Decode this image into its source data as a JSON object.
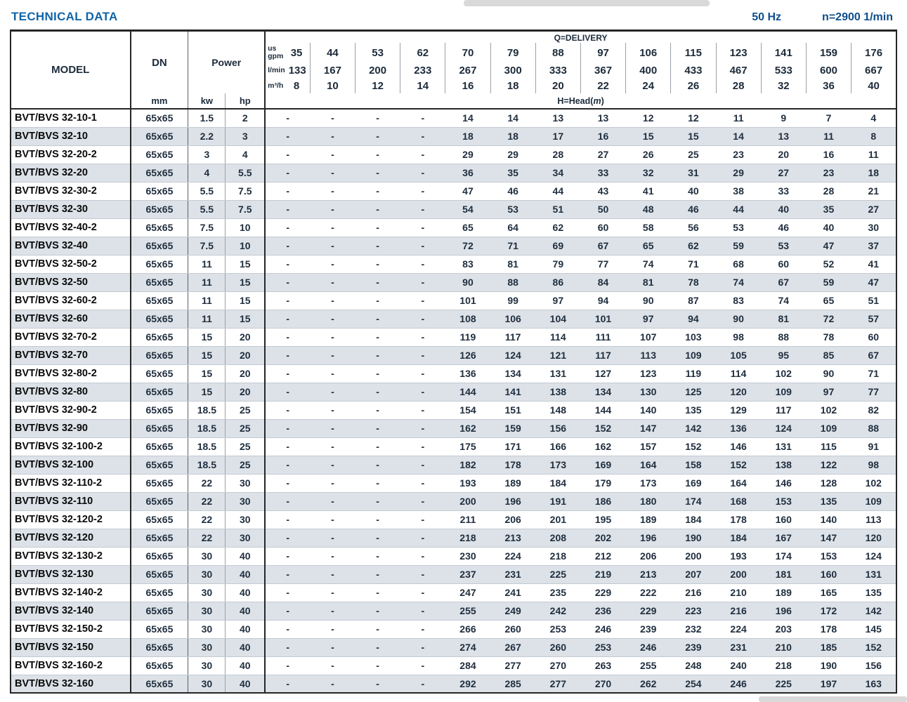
{
  "page": {
    "title": "TECHNICAL DATA",
    "frequency": "50 Hz",
    "speed": "n=2900 1/min"
  },
  "colors": {
    "title_blue": "#1065A8",
    "header_navy": "#0F4F8C",
    "row_shade": "#DCE2E8",
    "border_dark": "#262626"
  },
  "table": {
    "headers": {
      "model": "MODEL",
      "dn": "DN",
      "dn_unit": "mm",
      "power": "Power",
      "power_units": [
        "kw",
        "hp"
      ],
      "delivery_title": "Q=DELIVERY",
      "head_prefix": "H=Head(",
      "head_m": "m",
      "head_suffix": ")",
      "unit_rows": [
        {
          "label": "us\ngpm",
          "values": [
            "35",
            "44",
            "53",
            "62",
            "70",
            "79",
            "88",
            "97",
            "106",
            "115",
            "123",
            "141",
            "159",
            "176"
          ]
        },
        {
          "label": "l/min",
          "values": [
            "133",
            "167",
            "200",
            "233",
            "267",
            "300",
            "333",
            "367",
            "400",
            "433",
            "467",
            "533",
            "600",
            "667"
          ]
        },
        {
          "label": "m³/h",
          "values": [
            "8",
            "10",
            "12",
            "14",
            "16",
            "18",
            "20",
            "22",
            "24",
            "26",
            "28",
            "32",
            "36",
            "40"
          ]
        }
      ]
    },
    "rows": [
      {
        "model": "BVT/BVS 32-10-1",
        "dn": "65x65",
        "kw": "1.5",
        "hp": "2",
        "head": [
          "-",
          "-",
          "-",
          "-",
          "14",
          "14",
          "13",
          "13",
          "12",
          "12",
          "11",
          "9",
          "7",
          "4"
        ]
      },
      {
        "model": "BVT/BVS 32-10",
        "dn": "65x65",
        "kw": "2.2",
        "hp": "3",
        "head": [
          "-",
          "-",
          "-",
          "-",
          "18",
          "18",
          "17",
          "16",
          "15",
          "15",
          "14",
          "13",
          "11",
          "8"
        ]
      },
      {
        "model": "BVT/BVS 32-20-2",
        "dn": "65x65",
        "kw": "3",
        "hp": "4",
        "head": [
          "-",
          "-",
          "-",
          "-",
          "29",
          "29",
          "28",
          "27",
          "26",
          "25",
          "23",
          "20",
          "16",
          "11"
        ]
      },
      {
        "model": "BVT/BVS 32-20",
        "dn": "65x65",
        "kw": "4",
        "hp": "5.5",
        "head": [
          "-",
          "-",
          "-",
          "-",
          "36",
          "35",
          "34",
          "33",
          "32",
          "31",
          "29",
          "27",
          "23",
          "18"
        ]
      },
      {
        "model": "BVT/BVS 32-30-2",
        "dn": "65x65",
        "kw": "5.5",
        "hp": "7.5",
        "head": [
          "-",
          "-",
          "-",
          "-",
          "47",
          "46",
          "44",
          "43",
          "41",
          "40",
          "38",
          "33",
          "28",
          "21"
        ]
      },
      {
        "model": "BVT/BVS 32-30",
        "dn": "65x65",
        "kw": "5.5",
        "hp": "7.5",
        "head": [
          "-",
          "-",
          "-",
          "-",
          "54",
          "53",
          "51",
          "50",
          "48",
          "46",
          "44",
          "40",
          "35",
          "27"
        ]
      },
      {
        "model": "BVT/BVS 32-40-2",
        "dn": "65x65",
        "kw": "7.5",
        "hp": "10",
        "head": [
          "-",
          "-",
          "-",
          "-",
          "65",
          "64",
          "62",
          "60",
          "58",
          "56",
          "53",
          "46",
          "40",
          "30"
        ]
      },
      {
        "model": "BVT/BVS 32-40",
        "dn": "65x65",
        "kw": "7.5",
        "hp": "10",
        "head": [
          "-",
          "-",
          "-",
          "-",
          "72",
          "71",
          "69",
          "67",
          "65",
          "62",
          "59",
          "53",
          "47",
          "37"
        ]
      },
      {
        "model": "BVT/BVS 32-50-2",
        "dn": "65x65",
        "kw": "11",
        "hp": "15",
        "head": [
          "-",
          "-",
          "-",
          "-",
          "83",
          "81",
          "79",
          "77",
          "74",
          "71",
          "68",
          "60",
          "52",
          "41"
        ]
      },
      {
        "model": "BVT/BVS 32-50",
        "dn": "65x65",
        "kw": "11",
        "hp": "15",
        "head": [
          "-",
          "-",
          "-",
          "-",
          "90",
          "88",
          "86",
          "84",
          "81",
          "78",
          "74",
          "67",
          "59",
          "47"
        ]
      },
      {
        "model": "BVT/BVS 32-60-2",
        "dn": "65x65",
        "kw": "11",
        "hp": "15",
        "head": [
          "-",
          "-",
          "-",
          "-",
          "101",
          "99",
          "97",
          "94",
          "90",
          "87",
          "83",
          "74",
          "65",
          "51"
        ]
      },
      {
        "model": "BVT/BVS 32-60",
        "dn": "65x65",
        "kw": "11",
        "hp": "15",
        "head": [
          "-",
          "-",
          "-",
          "-",
          "108",
          "106",
          "104",
          "101",
          "97",
          "94",
          "90",
          "81",
          "72",
          "57"
        ]
      },
      {
        "model": "BVT/BVS 32-70-2",
        "dn": "65x65",
        "kw": "15",
        "hp": "20",
        "head": [
          "-",
          "-",
          "-",
          "-",
          "119",
          "117",
          "114",
          "111",
          "107",
          "103",
          "98",
          "88",
          "78",
          "60"
        ]
      },
      {
        "model": "BVT/BVS 32-70",
        "dn": "65x65",
        "kw": "15",
        "hp": "20",
        "head": [
          "-",
          "-",
          "-",
          "-",
          "126",
          "124",
          "121",
          "117",
          "113",
          "109",
          "105",
          "95",
          "85",
          "67"
        ]
      },
      {
        "model": "BVT/BVS 32-80-2",
        "dn": "65x65",
        "kw": "15",
        "hp": "20",
        "head": [
          "-",
          "-",
          "-",
          "-",
          "136",
          "134",
          "131",
          "127",
          "123",
          "119",
          "114",
          "102",
          "90",
          "71"
        ]
      },
      {
        "model": "BVT/BVS 32-80",
        "dn": "65x65",
        "kw": "15",
        "hp": "20",
        "head": [
          "-",
          "-",
          "-",
          "-",
          "144",
          "141",
          "138",
          "134",
          "130",
          "125",
          "120",
          "109",
          "97",
          "77"
        ]
      },
      {
        "model": "BVT/BVS 32-90-2",
        "dn": "65x65",
        "kw": "18.5",
        "hp": "25",
        "head": [
          "-",
          "-",
          "-",
          "-",
          "154",
          "151",
          "148",
          "144",
          "140",
          "135",
          "129",
          "117",
          "102",
          "82"
        ]
      },
      {
        "model": "BVT/BVS 32-90",
        "dn": "65x65",
        "kw": "18.5",
        "hp": "25",
        "head": [
          "-",
          "-",
          "-",
          "-",
          "162",
          "159",
          "156",
          "152",
          "147",
          "142",
          "136",
          "124",
          "109",
          "88"
        ]
      },
      {
        "model": "BVT/BVS 32-100-2",
        "dn": "65x65",
        "kw": "18.5",
        "hp": "25",
        "head": [
          "-",
          "-",
          "-",
          "-",
          "175",
          "171",
          "166",
          "162",
          "157",
          "152",
          "146",
          "131",
          "115",
          "91"
        ]
      },
      {
        "model": "BVT/BVS 32-100",
        "dn": "65x65",
        "kw": "18.5",
        "hp": "25",
        "head": [
          "-",
          "-",
          "-",
          "-",
          "182",
          "178",
          "173",
          "169",
          "164",
          "158",
          "152",
          "138",
          "122",
          "98"
        ]
      },
      {
        "model": "BVT/BVS 32-110-2",
        "dn": "65x65",
        "kw": "22",
        "hp": "30",
        "head": [
          "-",
          "-",
          "-",
          "-",
          "193",
          "189",
          "184",
          "179",
          "173",
          "169",
          "164",
          "146",
          "128",
          "102"
        ]
      },
      {
        "model": "BVT/BVS 32-110",
        "dn": "65x65",
        "kw": "22",
        "hp": "30",
        "head": [
          "-",
          "-",
          "-",
          "-",
          "200",
          "196",
          "191",
          "186",
          "180",
          "174",
          "168",
          "153",
          "135",
          "109"
        ]
      },
      {
        "model": "BVT/BVS 32-120-2",
        "dn": "65x65",
        "kw": "22",
        "hp": "30",
        "head": [
          "-",
          "-",
          "-",
          "-",
          "211",
          "206",
          "201",
          "195",
          "189",
          "184",
          "178",
          "160",
          "140",
          "113"
        ]
      },
      {
        "model": "BVT/BVS 32-120",
        "dn": "65x65",
        "kw": "22",
        "hp": "30",
        "head": [
          "-",
          "-",
          "-",
          "-",
          "218",
          "213",
          "208",
          "202",
          "196",
          "190",
          "184",
          "167",
          "147",
          "120"
        ]
      },
      {
        "model": "BVT/BVS 32-130-2",
        "dn": "65x65",
        "kw": "30",
        "hp": "40",
        "head": [
          "-",
          "-",
          "-",
          "-",
          "230",
          "224",
          "218",
          "212",
          "206",
          "200",
          "193",
          "174",
          "153",
          "124"
        ]
      },
      {
        "model": "BVT/BVS 32-130",
        "dn": "65x65",
        "kw": "30",
        "hp": "40",
        "head": [
          "-",
          "-",
          "-",
          "-",
          "237",
          "231",
          "225",
          "219",
          "213",
          "207",
          "200",
          "181",
          "160",
          "131"
        ]
      },
      {
        "model": "BVT/BVS 32-140-2",
        "dn": "65x65",
        "kw": "30",
        "hp": "40",
        "head": [
          "-",
          "-",
          "-",
          "-",
          "247",
          "241",
          "235",
          "229",
          "222",
          "216",
          "210",
          "189",
          "165",
          "135"
        ]
      },
      {
        "model": "BVT/BVS 32-140",
        "dn": "65x65",
        "kw": "30",
        "hp": "40",
        "head": [
          "-",
          "-",
          "-",
          "-",
          "255",
          "249",
          "242",
          "236",
          "229",
          "223",
          "216",
          "196",
          "172",
          "142"
        ]
      },
      {
        "model": "BVT/BVS 32-150-2",
        "dn": "65x65",
        "kw": "30",
        "hp": "40",
        "head": [
          "-",
          "-",
          "-",
          "-",
          "266",
          "260",
          "253",
          "246",
          "239",
          "232",
          "224",
          "203",
          "178",
          "145"
        ]
      },
      {
        "model": "BVT/BVS 32-150",
        "dn": "65x65",
        "kw": "30",
        "hp": "40",
        "head": [
          "-",
          "-",
          "-",
          "-",
          "274",
          "267",
          "260",
          "253",
          "246",
          "239",
          "231",
          "210",
          "185",
          "152"
        ]
      },
      {
        "model": "BVT/BVS 32-160-2",
        "dn": "65x65",
        "kw": "30",
        "hp": "40",
        "head": [
          "-",
          "-",
          "-",
          "-",
          "284",
          "277",
          "270",
          "263",
          "255",
          "248",
          "240",
          "218",
          "190",
          "156"
        ]
      },
      {
        "model": "BVT/BVS 32-160",
        "dn": "65x65",
        "kw": "30",
        "hp": "40",
        "head": [
          "-",
          "-",
          "-",
          "-",
          "292",
          "285",
          "277",
          "270",
          "262",
          "254",
          "246",
          "225",
          "197",
          "163"
        ]
      }
    ]
  }
}
